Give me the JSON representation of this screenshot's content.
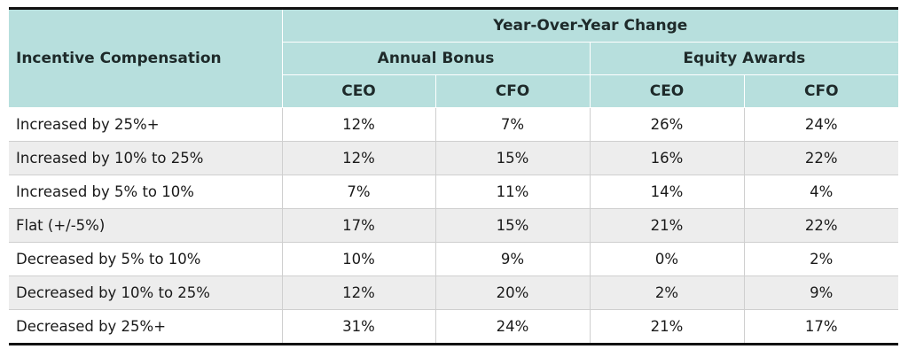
{
  "table": {
    "row_header": "Incentive Compensation",
    "group_header": "Year-Over-Year Change",
    "subgroups": [
      "Annual Bonus",
      "Equity Awards"
    ],
    "columns": [
      "CEO",
      "CFO",
      "CEO",
      "CFO"
    ],
    "rows": [
      {
        "label": "Increased by 25%+",
        "values": [
          "12%",
          "7%",
          "26%",
          "24%"
        ]
      },
      {
        "label": "Increased by 10% to 25%",
        "values": [
          "12%",
          "15%",
          "16%",
          "22%"
        ]
      },
      {
        "label": "Increased by 5% to 10%",
        "values": [
          "7%",
          "11%",
          "14%",
          "4%"
        ]
      },
      {
        "label": "Flat (+/-5%)",
        "values": [
          "17%",
          "15%",
          "21%",
          "22%"
        ]
      },
      {
        "label": "Decreased by 5% to 10%",
        "values": [
          "10%",
          "9%",
          "0%",
          "2%"
        ]
      },
      {
        "label": "Decreased by 10% to 25%",
        "values": [
          "12%",
          "20%",
          "2%",
          "9%"
        ]
      },
      {
        "label": "Decreased by 25%+",
        "values": [
          "31%",
          "24%",
          "21%",
          "17%"
        ]
      }
    ],
    "colors": {
      "header_bg": "#b7dfdd",
      "alt_row_bg": "#ededed"
    }
  }
}
